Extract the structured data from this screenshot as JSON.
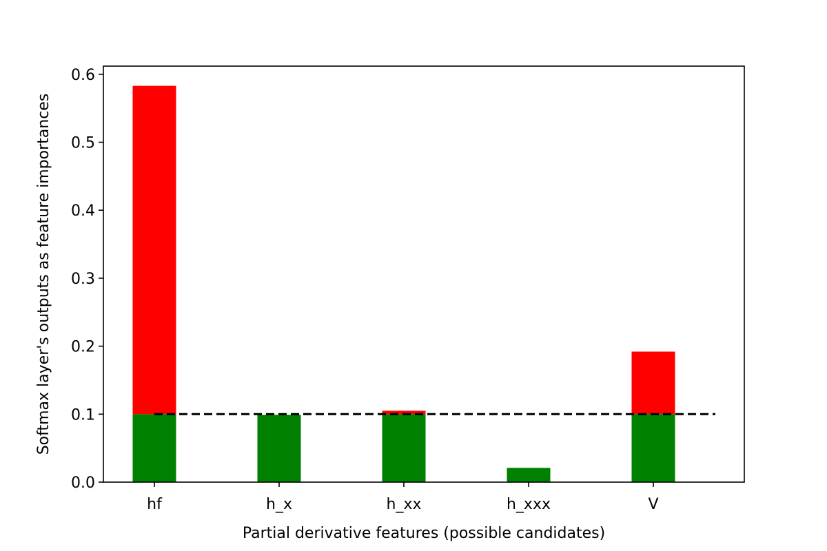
{
  "chart_data": {
    "type": "bar",
    "title": "",
    "xlabel": "Partial derivative features (possible candidates)",
    "ylabel": "Softmax layer's outputs as feature importances",
    "categories": [
      "hf",
      "h_x",
      "h_xx",
      "h_xxx",
      "V"
    ],
    "values": [
      0.583,
      0.099,
      0.105,
      0.021,
      0.192
    ],
    "threshold": 0.1,
    "ylim": [
      0,
      0.612
    ],
    "yticks": [
      "0.0",
      "0.1",
      "0.2",
      "0.3",
      "0.4",
      "0.5",
      "0.6"
    ],
    "colors": {
      "below_threshold": "#008000",
      "above_threshold": "#ff0000",
      "threshold_line": "#000000"
    },
    "grid": false,
    "legend": "none"
  }
}
